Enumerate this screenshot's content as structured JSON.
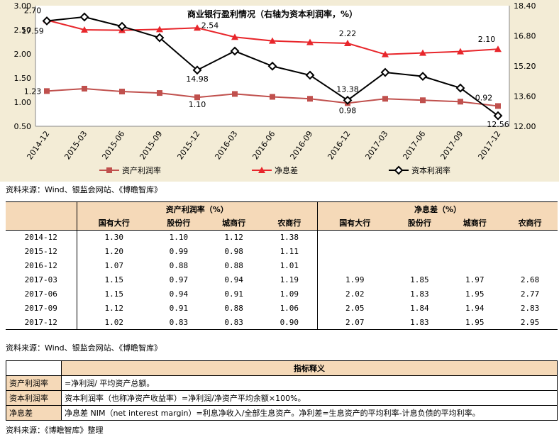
{
  "chart_data": {
    "type": "line",
    "title": "商业银行盈利情况（右轴为资本利润率，%）",
    "categories": [
      "2014-12",
      "2015-03",
      "2015-06",
      "2015-09",
      "2015-12",
      "2016-03",
      "2016-06",
      "2016-09",
      "2016-12",
      "2017-03",
      "2017-06",
      "2017-09",
      "2017-12"
    ],
    "y_left": {
      "min": 0.5,
      "max": 3.0,
      "ticks": [
        "3.00",
        "2.50",
        "2.00",
        "1.50",
        "1.00",
        "0.50"
      ]
    },
    "y_right": {
      "min": 12.0,
      "max": 18.4,
      "ticks": [
        "18.40",
        "16.80",
        "15.20",
        "13.60",
        "12.00"
      ]
    },
    "series": [
      {
        "name": "资产利润率",
        "axis": "left",
        "color": "#c0504d",
        "marker": "square",
        "values": [
          1.23,
          1.28,
          1.22,
          1.19,
          1.1,
          1.17,
          1.11,
          1.07,
          0.98,
          1.07,
          1.04,
          1.01,
          0.92
        ],
        "labels": [
          {
            "i": 0,
            "text": "1.23"
          },
          {
            "i": 4,
            "text": "1.10"
          },
          {
            "i": 12,
            "text": "0.92"
          }
        ]
      },
      {
        "name": "净息差",
        "axis": "left",
        "color": "#e8262b",
        "marker": "triangle",
        "values": [
          2.7,
          2.5,
          2.49,
          2.51,
          2.54,
          2.35,
          2.27,
          2.24,
          2.22,
          1.99,
          2.02,
          2.05,
          2.1
        ],
        "labels": [
          {
            "i": 0,
            "text": "2.70"
          },
          {
            "i": 4,
            "text": "2.54"
          },
          {
            "i": 8,
            "text": "2.22"
          },
          {
            "i": 12,
            "text": "2.10"
          }
        ]
      },
      {
        "name": "资本利润率",
        "axis": "right",
        "color": "#000000",
        "marker": "diamond",
        "values": [
          17.59,
          17.8,
          17.3,
          16.7,
          14.98,
          15.99,
          15.19,
          14.71,
          13.38,
          14.86,
          14.65,
          14.03,
          12.56
        ],
        "labels": [
          {
            "i": 0,
            "text": "17.59"
          },
          {
            "i": 4,
            "text": "14.98"
          },
          {
            "i": 8,
            "text": "13.38"
          },
          {
            "i": 12,
            "text": "12.56"
          }
        ]
      }
    ],
    "extra_labels": [
      {
        "series": 0,
        "i": 8,
        "text": "0.98"
      }
    ],
    "legend_position": "bottom"
  },
  "chart_source": "资料来源：Wind、银监会网站、《博瞻智库》",
  "table1": {
    "group1": "资产利润率（%）",
    "group2": "净息差（%）",
    "subheaders": [
      "国有大行",
      "股份行",
      "城商行",
      "农商行",
      "国有大行",
      "股份行",
      "城商行",
      "农商行"
    ],
    "rows": [
      {
        "date": "2014-12",
        "v": [
          "1.30",
          "1.10",
          "1.12",
          "1.38",
          "",
          "",
          "",
          ""
        ]
      },
      {
        "date": "2015-12",
        "v": [
          "1.20",
          "0.99",
          "0.98",
          "1.11",
          "",
          "",
          "",
          ""
        ]
      },
      {
        "date": "2016-12",
        "v": [
          "1.07",
          "0.88",
          "0.88",
          "1.01",
          "",
          "",
          "",
          ""
        ]
      },
      {
        "date": "2017-03",
        "v": [
          "1.15",
          "0.97",
          "0.94",
          "1.19",
          "1.99",
          "1.85",
          "1.97",
          "2.68"
        ]
      },
      {
        "date": "2017-06",
        "v": [
          "1.15",
          "0.94",
          "0.91",
          "1.09",
          "2.02",
          "1.83",
          "1.95",
          "2.77"
        ]
      },
      {
        "date": "2017-09",
        "v": [
          "1.12",
          "0.91",
          "0.88",
          "1.06",
          "2.05",
          "1.84",
          "1.94",
          "2.83"
        ]
      },
      {
        "date": "2017-12",
        "v": [
          "1.02",
          "0.83",
          "0.83",
          "0.90",
          "2.07",
          "1.83",
          "1.95",
          "2.95"
        ]
      }
    ]
  },
  "table1_source": "资料来源：Wind、银监会网站、《博瞻智库》",
  "table2": {
    "header": "指标释义",
    "rows": [
      {
        "term": "资产利润率",
        "def": "=净利润/ 平均资产总额。"
      },
      {
        "term": "资本利润率",
        "def": "资本利润率（也称净资产收益率）=净利润/净资产平均余额×100%。"
      },
      {
        "term": "净息差",
        "def": "净息差 NIM（net interest margin）=利息净收入/全部生息资产。净利差=生息资产的平均利率-计息负债的平均利率。"
      }
    ]
  },
  "table2_source": "资料来源：《博瞻智库》整理"
}
